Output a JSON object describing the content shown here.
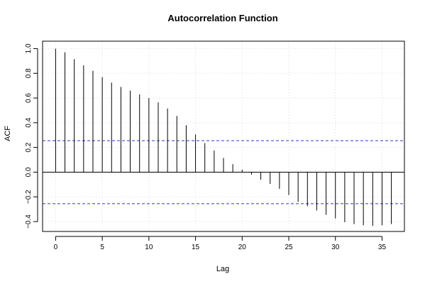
{
  "chart_data": {
    "type": "bar",
    "title": "Autocorrelation Function",
    "xlabel": "Lag",
    "ylabel": "ACF",
    "xlim": [
      -1.4,
      37.4
    ],
    "ylim": [
      -0.48,
      1.06
    ],
    "x_ticks": [
      0,
      5,
      10,
      15,
      20,
      25,
      30,
      35
    ],
    "y_ticks": [
      -0.4,
      -0.2,
      0.0,
      0.2,
      0.4,
      0.6,
      0.8,
      1.0
    ],
    "x_tick_labels": [
      "0",
      "5",
      "10",
      "15",
      "20",
      "25",
      "30",
      "35"
    ],
    "y_tick_labels": [
      "−0.4",
      "−0.2",
      "0.0",
      "0.2",
      "0.4",
      "0.6",
      "0.8",
      "1.0"
    ],
    "grid": true,
    "confidence_bound": 0.255,
    "confidence_color": "#3333cc",
    "lags": [
      0,
      1,
      2,
      3,
      4,
      5,
      6,
      7,
      8,
      9,
      10,
      11,
      12,
      13,
      14,
      15,
      16,
      17,
      18,
      19,
      20,
      21,
      22,
      23,
      24,
      25,
      26,
      27,
      28,
      29,
      30,
      31,
      32,
      33,
      34,
      35,
      36
    ],
    "values": [
      1.0,
      0.97,
      0.915,
      0.865,
      0.82,
      0.77,
      0.725,
      0.69,
      0.66,
      0.63,
      0.6,
      0.565,
      0.515,
      0.455,
      0.38,
      0.305,
      0.235,
      0.175,
      0.115,
      0.065,
      0.02,
      -0.02,
      -0.06,
      -0.095,
      -0.135,
      -0.185,
      -0.24,
      -0.275,
      -0.31,
      -0.345,
      -0.375,
      -0.405,
      -0.42,
      -0.43,
      -0.435,
      -0.43,
      -0.42
    ]
  }
}
